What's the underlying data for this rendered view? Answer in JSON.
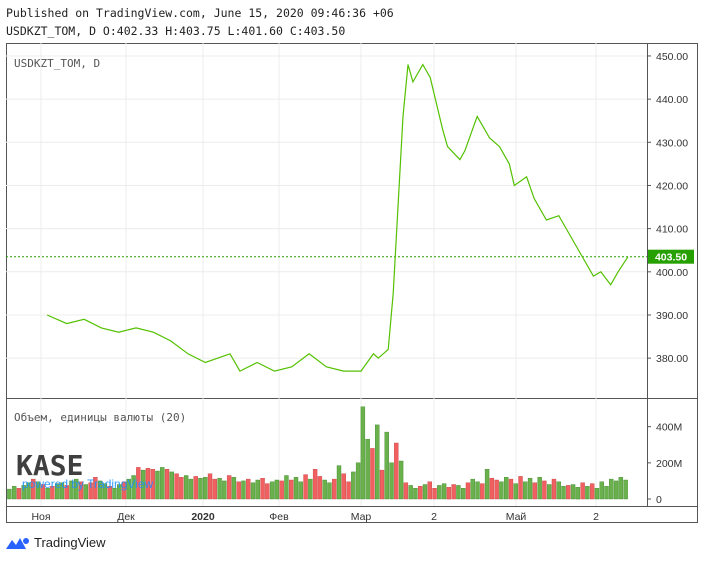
{
  "header": {
    "published": "Published on TradingView.com, June 15, 2020 09:46:36 +06",
    "ohlc": "USDKZT_TOM, D O:402.33 H:403.75 L:401.60 C:403.50"
  },
  "legend": {
    "symbol": "USDKZT_TOM, D"
  },
  "volume_legend": "Объем, единицы валюты (20)",
  "watermark": {
    "logo": "KASE",
    "powered": "powered by TradingView"
  },
  "last_price": {
    "label": "403.50",
    "value": 403.5,
    "color": "#26a000"
  },
  "footer": {
    "brand": "TradingView",
    "brand_color": "#2962ff"
  },
  "colors": {
    "line": "#53c000",
    "vol_up": "#6ab04c",
    "vol_down": "#f06060"
  },
  "chart_data": [
    {
      "type": "line",
      "title": "USDKZT_TOM, D",
      "x_labels": [
        "Ноя",
        "Дек",
        "2020",
        "Фев",
        "Мар",
        "2",
        "Май",
        "2"
      ],
      "y_ticks": [
        380,
        390,
        400,
        410,
        420,
        430,
        440,
        450
      ],
      "ylim": [
        371,
        453
      ],
      "x": [
        "2019-10-24",
        "2019-11-01",
        "2019-11-08",
        "2019-11-15",
        "2019-11-22",
        "2019-11-29",
        "2019-12-06",
        "2019-12-13",
        "2019-12-20",
        "2019-12-27",
        "2020-01-06",
        "2020-01-10",
        "2020-01-17",
        "2020-01-24",
        "2020-01-31",
        "2020-02-07",
        "2020-02-14",
        "2020-02-21",
        "2020-02-28",
        "2020-03-04",
        "2020-03-06",
        "2020-03-10",
        "2020-03-12",
        "2020-03-16",
        "2020-03-18",
        "2020-03-20",
        "2020-03-24",
        "2020-03-27",
        "2020-04-01",
        "2020-04-03",
        "2020-04-08",
        "2020-04-10",
        "2020-04-15",
        "2020-04-20",
        "2020-04-24",
        "2020-04-28",
        "2020-04-30",
        "2020-05-05",
        "2020-05-08",
        "2020-05-13",
        "2020-05-18",
        "2020-05-22",
        "2020-05-27",
        "2020-06-01",
        "2020-06-04",
        "2020-06-08",
        "2020-06-11",
        "2020-06-15"
      ],
      "series": [
        {
          "values": [
            390,
            388,
            389,
            387,
            386,
            387,
            386,
            384,
            381,
            379,
            381,
            377,
            379,
            377,
            378,
            381,
            378,
            377,
            377,
            381,
            380,
            382,
            395,
            436,
            448,
            444,
            448,
            445,
            433,
            429,
            426,
            428,
            436,
            431,
            429,
            425,
            420,
            422,
            417,
            412,
            413,
            409,
            404,
            399,
            400,
            397,
            400,
            403.5
          ]
        }
      ]
    },
    {
      "type": "bar",
      "title": "Объем, единицы валюты (20)",
      "y_ticks": [
        0,
        200,
        400
      ],
      "y_tick_labels": [
        "0",
        "200M",
        "400M"
      ],
      "ylim": [
        0,
        520
      ],
      "values": [
        55,
        70,
        60,
        75,
        90,
        110,
        95,
        80,
        60,
        70,
        85,
        90,
        75,
        100,
        110,
        95,
        80,
        90,
        120,
        100,
        85,
        70,
        60,
        80,
        95,
        110,
        130,
        175,
        160,
        170,
        165,
        155,
        175,
        165,
        150,
        140,
        120,
        130,
        110,
        125,
        115,
        120,
        140,
        110,
        115,
        100,
        130,
        120,
        95,
        100,
        110,
        90,
        105,
        115,
        85,
        95,
        105,
        100,
        130,
        105,
        120,
        95,
        135,
        110,
        165,
        125,
        105,
        90,
        110,
        185,
        140,
        95,
        150,
        200,
        510,
        330,
        280,
        410,
        160,
        370,
        200,
        310,
        210,
        90,
        75,
        60,
        70,
        80,
        95,
        60,
        75,
        85,
        65,
        80,
        75,
        60,
        90,
        110,
        95,
        85,
        165,
        115,
        105,
        95,
        120,
        110,
        85,
        125,
        95,
        115,
        90,
        120,
        100,
        80,
        110,
        95,
        70,
        75,
        80,
        65,
        90,
        70,
        85,
        60,
        95,
        70,
        110,
        100,
        120,
        105
      ],
      "up": [
        1,
        1,
        0,
        1,
        1,
        0,
        1,
        0,
        1,
        0,
        1,
        1,
        0,
        1,
        1,
        0,
        1,
        0,
        0,
        1,
        1,
        0,
        1,
        1,
        0,
        1,
        1,
        0,
        1,
        0,
        0,
        1,
        1,
        0,
        1,
        0,
        0,
        1,
        1,
        0,
        1,
        1,
        0,
        0,
        1,
        1,
        0,
        1,
        0,
        1,
        0,
        1,
        1,
        0,
        0,
        1,
        1,
        0,
        1,
        0,
        1,
        1,
        0,
        1,
        0,
        0,
        1,
        1,
        0,
        1,
        0,
        0,
        1,
        1,
        1,
        1,
        0,
        1,
        0,
        1,
        1,
        0,
        1,
        0,
        1,
        1,
        0,
        1,
        0,
        0,
        1,
        1,
        0,
        0,
        1,
        1,
        0,
        1,
        1,
        0,
        1,
        0,
        0,
        1,
        1,
        0,
        1,
        0,
        1,
        1,
        0,
        1,
        0,
        1,
        0,
        1,
        1,
        0,
        1,
        1,
        0,
        1,
        0,
        1,
        1,
        1,
        1,
        1,
        1,
        1
      ]
    }
  ]
}
